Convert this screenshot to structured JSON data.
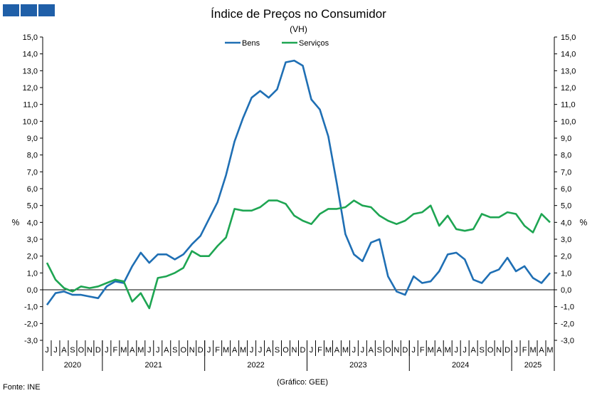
{
  "logo": {
    "icon": "ine-logo-icon"
  },
  "chart_data": {
    "type": "line",
    "title": "Índice de Preços no Consumidor",
    "subtitle": "(VH)",
    "ylabel_left": "%",
    "ylabel_right": "%",
    "ylim": [
      -3,
      15
    ],
    "yticks": [
      "15,0",
      "14,0",
      "13,0",
      "12,0",
      "11,0",
      "10,0",
      "9,0",
      "8,0",
      "7,0",
      "6,0",
      "5,0",
      "4,0",
      "3,0",
      "2,0",
      "1,0",
      "0,0",
      "-1,0",
      "-2,0",
      "-3,0"
    ],
    "grid": false,
    "legend": "top-center",
    "months": [
      "J",
      "J",
      "A",
      "S",
      "O",
      "N",
      "D",
      "J",
      "F",
      "M",
      "A",
      "M",
      "J",
      "J",
      "A",
      "S",
      "O",
      "N",
      "D",
      "J",
      "F",
      "M",
      "A",
      "M",
      "J",
      "J",
      "A",
      "S",
      "O",
      "N",
      "D",
      "J",
      "F",
      "M",
      "A",
      "M",
      "J",
      "J",
      "A",
      "S",
      "O",
      "N",
      "D",
      "J",
      "F",
      "M",
      "A",
      "M",
      "J",
      "J",
      "A",
      "S",
      "O",
      "N",
      "D",
      "J",
      "F",
      "M",
      "A",
      "M"
    ],
    "years": [
      {
        "label": "2020",
        "months": 7
      },
      {
        "label": "2021",
        "months": 12
      },
      {
        "label": "2022",
        "months": 12
      },
      {
        "label": "2023",
        "months": 12
      },
      {
        "label": "2024",
        "months": 12
      },
      {
        "label": "2025",
        "months": 5
      }
    ],
    "series": [
      {
        "name": "Bens",
        "color": "#1f6fb4",
        "values": [
          -0.9,
          -0.2,
          -0.1,
          -0.3,
          -0.3,
          -0.4,
          -0.5,
          0.2,
          0.5,
          0.4,
          1.4,
          2.2,
          1.6,
          2.1,
          2.1,
          1.8,
          2.1,
          2.7,
          3.2,
          4.2,
          5.2,
          6.8,
          8.8,
          10.2,
          11.4,
          11.8,
          11.4,
          11.9,
          13.5,
          13.6,
          13.3,
          11.3,
          10.7,
          9.1,
          6.3,
          3.3,
          2.1,
          1.7,
          2.8,
          3.0,
          0.8,
          -0.1,
          -0.3,
          0.8,
          0.4,
          0.5,
          1.1,
          2.1,
          2.2,
          1.8,
          0.6,
          0.4,
          1.0,
          1.2,
          1.9,
          1.1,
          1.4,
          0.7,
          0.4,
          1.0
        ]
      },
      {
        "name": "Serviços",
        "color": "#1ea552",
        "values": [
          1.6,
          0.6,
          0.1,
          -0.1,
          0.2,
          0.1,
          0.2,
          0.4,
          0.6,
          0.5,
          -0.7,
          -0.2,
          -1.1,
          0.7,
          0.8,
          1.0,
          1.3,
          2.3,
          2.0,
          2.0,
          2.6,
          3.1,
          4.8,
          4.7,
          4.7,
          4.9,
          5.3,
          5.3,
          5.1,
          4.4,
          4.1,
          3.9,
          4.5,
          4.8,
          4.8,
          4.9,
          5.3,
          5.0,
          4.9,
          4.4,
          4.1,
          3.9,
          4.1,
          4.5,
          4.6,
          5.0,
          3.8,
          4.4,
          3.6,
          3.5,
          3.6,
          4.5,
          4.3,
          4.3,
          4.6,
          4.5,
          3.8,
          3.4,
          4.5,
          4.0
        ]
      }
    ]
  },
  "footer": {
    "credit": "(Gráfico: GEE)",
    "source": "Fonte: INE"
  }
}
